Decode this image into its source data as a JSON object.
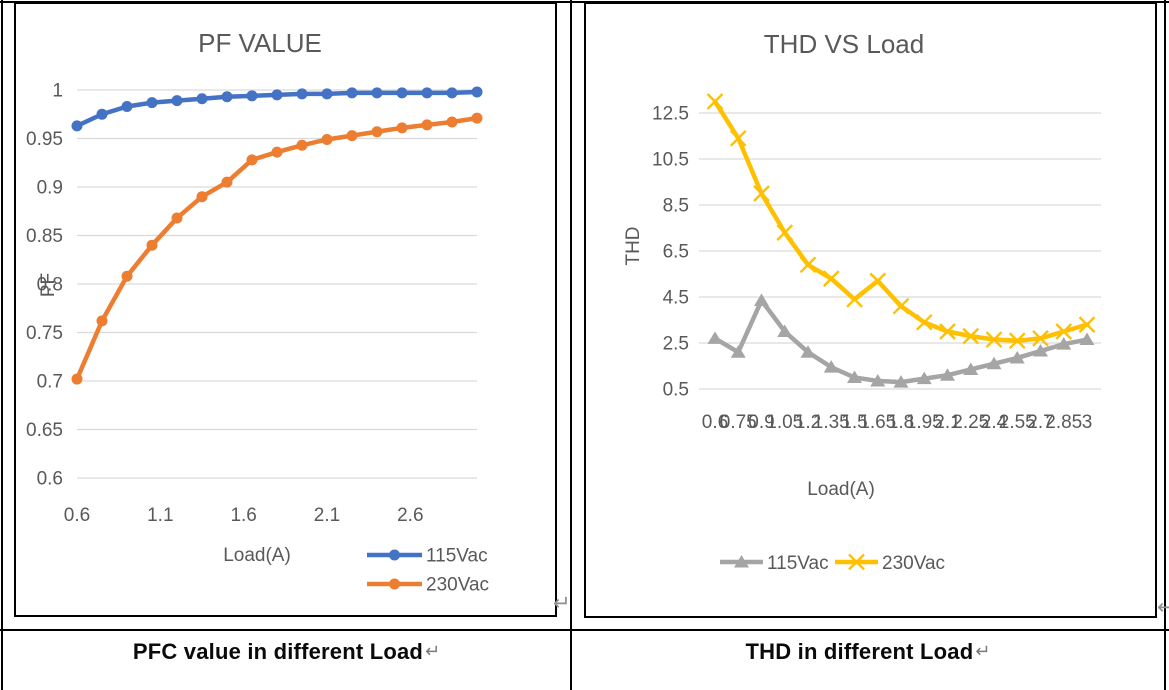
{
  "table": {
    "border_color": "#000000",
    "cell_end_mark": "↵",
    "line_break_mark": "↵"
  },
  "captions": {
    "left": "PFC value in different Load",
    "right": "THD in different Load"
  },
  "chart_data": [
    {
      "type": "line",
      "title": "PF VALUE",
      "xlabel": "Load(A)",
      "ylabel": "PF",
      "x": [
        0.6,
        0.75,
        0.9,
        1.05,
        1.2,
        1.35,
        1.5,
        1.65,
        1.8,
        1.95,
        2.1,
        2.25,
        2.4,
        2.55,
        2.7,
        2.85,
        3
      ],
      "series": [
        {
          "name": "115Vac",
          "color": "#4472C4",
          "marker": "circle",
          "values": [
            0.963,
            0.975,
            0.983,
            0.987,
            0.989,
            0.991,
            0.993,
            0.994,
            0.995,
            0.996,
            0.996,
            0.997,
            0.997,
            0.997,
            0.997,
            0.997,
            0.998
          ]
        },
        {
          "name": "230Vac",
          "color": "#ED7D31",
          "marker": "circle",
          "values": [
            0.702,
            0.762,
            0.808,
            0.84,
            0.868,
            0.89,
            0.905,
            0.928,
            0.936,
            0.943,
            0.949,
            0.953,
            0.957,
            0.961,
            0.964,
            0.967,
            0.971
          ]
        }
      ],
      "xlim": [
        0.6,
        3.0
      ],
      "ylim": [
        0.6,
        1.0
      ],
      "xticks": [
        "0.6",
        "1.1",
        "1.6",
        "2.1",
        "2.6"
      ],
      "yticks": [
        "1",
        "0.95",
        "0.9",
        "0.85",
        "0.8",
        "0.75",
        "0.7",
        "0.65",
        "0.6"
      ],
      "grid": true,
      "legend_position": "bottom-right-stacked",
      "text_color": "#595959",
      "grid_color": "#D9D9D9"
    },
    {
      "type": "line",
      "title": "THD VS Load",
      "xlabel": "Load(A)",
      "ylabel": "THD",
      "categories": [
        "0.6",
        "0.75",
        "0.9",
        "1.05",
        "1.2",
        "1.35",
        "1.5",
        "1.65",
        "1.8",
        "1.95",
        "2.1",
        "2.25",
        "2.4",
        "2.55",
        "2.7",
        "2.85",
        "3"
      ],
      "series": [
        {
          "name": "115Vac",
          "color": "#A5A5A5",
          "marker": "triangle",
          "values": [
            2.7,
            2.1,
            4.35,
            3.0,
            2.1,
            1.45,
            1.0,
            0.85,
            0.8,
            0.95,
            1.1,
            1.35,
            1.6,
            1.85,
            2.15,
            2.45,
            2.65
          ]
        },
        {
          "name": "230Vac",
          "color": "#FFC000",
          "marker": "x",
          "values": [
            13.0,
            11.4,
            9.0,
            7.3,
            5.9,
            5.3,
            4.4,
            5.2,
            4.1,
            3.4,
            3.0,
            2.8,
            2.65,
            2.6,
            2.7,
            3.0,
            3.3
          ]
        }
      ],
      "ylim": [
        0.5,
        12.5
      ],
      "yticks": [
        "12.5",
        "10.5",
        "8.5",
        "6.5",
        "4.5",
        "2.5",
        "0.5"
      ],
      "grid": true,
      "legend_position": "bottom-horizontal",
      "text_color": "#595959",
      "grid_color": "#D9D9D9"
    }
  ]
}
